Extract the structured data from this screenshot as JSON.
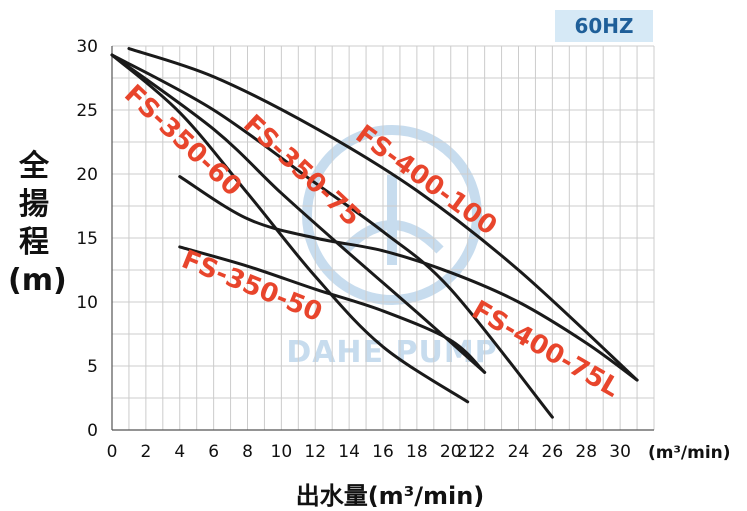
{
  "header": {
    "frequency_badge": "60HZ"
  },
  "axes": {
    "ylabel_chars": [
      "全",
      "揚",
      "程"
    ],
    "ylabel_unit": "(m)",
    "xlabel": "出水量(m³/min)",
    "xunit": "(m³/min)"
  },
  "watermark": {
    "text": "DAHE PUMP"
  },
  "colors": {
    "curve": "#1a1a1a",
    "label": "#e8452c",
    "grid": "#cccccc",
    "badge_bg": "#d6e9f6",
    "badge_text": "#1f5f99",
    "watermark": "#c7dcee"
  },
  "chart_data": {
    "type": "line",
    "xlim": [
      0,
      32
    ],
    "ylim": [
      0,
      30
    ],
    "x_ticks": [
      0,
      2,
      4,
      6,
      8,
      10,
      12,
      14,
      16,
      18,
      20,
      21,
      22,
      24,
      26,
      28,
      30
    ],
    "y_ticks": [
      0,
      5,
      10,
      15,
      20,
      25,
      30
    ],
    "grid": true,
    "series": [
      {
        "name": "FS-350-60",
        "x": [
          0,
          4,
          8,
          12,
          16,
          21
        ],
        "y": [
          29.3,
          24.8,
          18.5,
          12.0,
          6.5,
          2.2
        ]
      },
      {
        "name": "FS-350-75",
        "x": [
          0,
          6,
          10,
          14,
          18,
          22
        ],
        "y": [
          29.3,
          23.5,
          18.5,
          13.8,
          9.2,
          4.5
        ]
      },
      {
        "name": "FS-400-75L",
        "x": [
          0,
          6,
          12,
          16,
          20,
          26
        ],
        "y": [
          29.3,
          25.0,
          19.3,
          15.5,
          11.0,
          1.0
        ]
      },
      {
        "name": "FS-400-100",
        "x": [
          1,
          6,
          12,
          18,
          24,
          31
        ],
        "y": [
          29.8,
          27.6,
          23.6,
          18.7,
          12.5,
          3.9
        ]
      },
      {
        "name": "FS-350-50",
        "x": [
          4,
          8,
          12,
          16,
          20,
          22
        ],
        "y": [
          14.3,
          12.8,
          11.0,
          9.3,
          7.0,
          4.5
        ]
      },
      {
        "name": "",
        "x": [
          4,
          8,
          12,
          16,
          20,
          24,
          28,
          31
        ],
        "y": [
          19.8,
          16.5,
          15.0,
          14.0,
          12.3,
          10.0,
          6.8,
          3.9
        ]
      }
    ]
  }
}
